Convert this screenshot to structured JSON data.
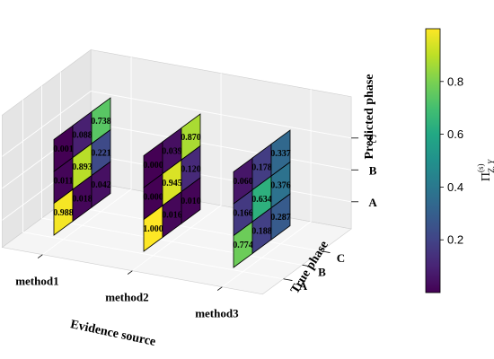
{
  "chart_data": {
    "type": "heatmap",
    "projection": "3d",
    "x_axis": {
      "label": "Evidence source",
      "categories": [
        "method1",
        "method2",
        "method3"
      ]
    },
    "y_axis": {
      "label": "True phase",
      "categories": [
        "A",
        "B",
        "C"
      ]
    },
    "z_axis": {
      "label": "Predicted phase",
      "categories": [
        "A",
        "B",
        "C"
      ]
    },
    "panels": [
      {
        "source": "method1",
        "matrix": [
          [
            0.988,
            0.018,
            0.042
          ],
          [
            0.011,
            0.893,
            0.221
          ],
          [
            0.001,
            0.088,
            0.738
          ]
        ]
      },
      {
        "source": "method2",
        "matrix": [
          [
            1.0,
            0.016,
            0.01
          ],
          [
            0.0,
            0.945,
            0.12
          ],
          [
            0.0,
            0.039,
            0.87
          ]
        ]
      },
      {
        "source": "method3",
        "matrix": [
          [
            0.774,
            0.188,
            0.287
          ],
          [
            0.166,
            0.634,
            0.376
          ],
          [
            0.06,
            0.178,
            0.337
          ]
        ]
      }
    ],
    "colorbar": {
      "label_main": "Π",
      "label_sub": "Z, Y",
      "label_sup": "(s)",
      "ticks": [
        0.2,
        0.4,
        0.6,
        0.8
      ],
      "range": [
        0.0,
        1.0
      ],
      "colormap": "viridis"
    },
    "grid": true
  }
}
